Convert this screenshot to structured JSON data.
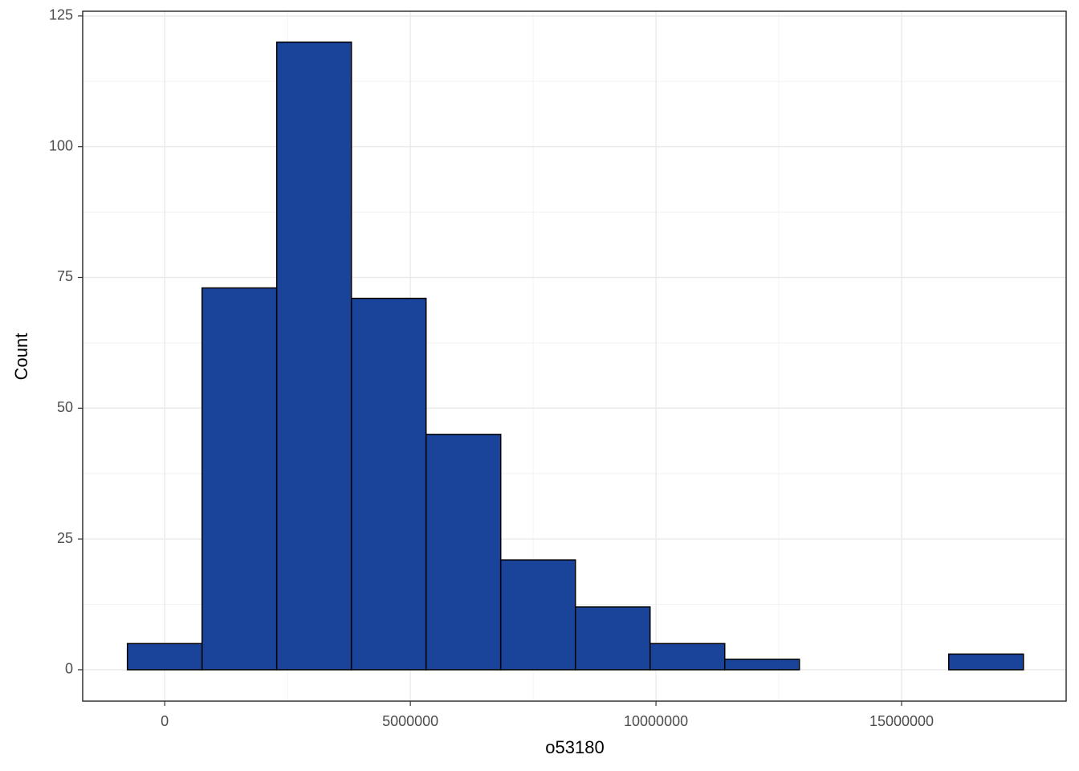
{
  "chart_data": {
    "type": "histogram",
    "x_label": "o53180",
    "y_label": "Count",
    "bins": [
      -760000,
      760000,
      2280000,
      3800000,
      5320000,
      6840000,
      8360000,
      9880000,
      11400000,
      12920000,
      14440000,
      15960000,
      17480000
    ],
    "counts": [
      5,
      73,
      120,
      71,
      45,
      21,
      12,
      5,
      2,
      0,
      0,
      3
    ],
    "color": "#1a449a",
    "xlim": [
      -1670000,
      18350000
    ],
    "ylim": [
      -6,
      125.9
    ],
    "xticks": [
      0,
      5000000,
      10000000,
      15000000
    ],
    "yticks": [
      0,
      25,
      50,
      75,
      100,
      125
    ],
    "grid": true
  }
}
